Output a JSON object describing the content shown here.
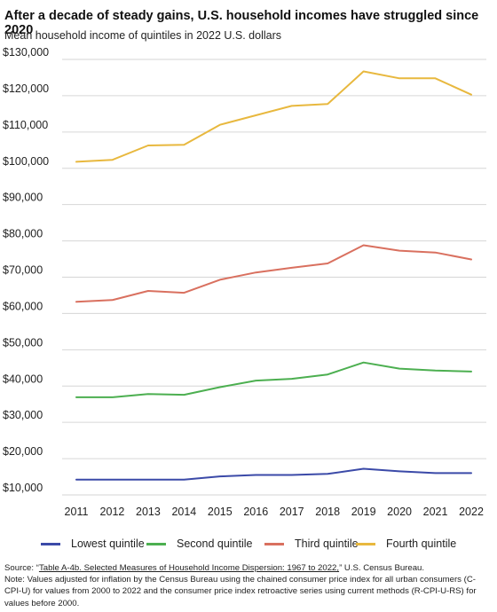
{
  "title": "After a decade of steady gains, U.S. household incomes have struggled since 2020",
  "subtitle": "Mean household income of quintiles in 2022 U.S. dollars",
  "chart_data": {
    "type": "line",
    "x": [
      "2011",
      "2012",
      "2013",
      "2014",
      "2015",
      "2016",
      "2017",
      "2018",
      "2019",
      "2020",
      "2021",
      "2022"
    ],
    "ylim": [
      10000,
      130000
    ],
    "y_ticks": [
      "$130,000",
      "$120,000",
      "$110,000",
      "$100,000",
      "$90,000",
      "$80,000",
      "$70,000",
      "$60,000",
      "$50,000",
      "$40,000",
      "$30,000",
      "$20,000",
      "$10,000"
    ],
    "y_tick_values": [
      130000,
      120000,
      110000,
      100000,
      90000,
      80000,
      70000,
      60000,
      50000,
      40000,
      30000,
      20000,
      10000
    ],
    "grid": true,
    "legend_position": "bottom",
    "series": [
      {
        "name": "Lowest quintile",
        "color": "#3b4aa8",
        "values": [
          14200,
          14200,
          14200,
          14200,
          15100,
          15500,
          15500,
          15800,
          17200,
          16500,
          16000,
          16000
        ]
      },
      {
        "name": "Second quintile",
        "color": "#4caf50",
        "values": [
          36900,
          36900,
          37800,
          37600,
          39700,
          41500,
          42000,
          43200,
          46500,
          44800,
          44300,
          44000
        ]
      },
      {
        "name": "Third quintile",
        "color": "#d9705f",
        "values": [
          63200,
          63700,
          66200,
          65700,
          69300,
          71300,
          72600,
          73800,
          78800,
          77300,
          76800,
          74900
        ]
      },
      {
        "name": "Fourth quintile",
        "color": "#e8b83e",
        "values": [
          101800,
          102300,
          106300,
          106500,
          112000,
          114600,
          117200,
          117700,
          126700,
          124800,
          124800,
          120300
        ]
      }
    ]
  },
  "footer": {
    "source_prefix": "Source: “",
    "source_link": "Table A-4b. Selected Measures of Household Income Dispersion: 1967 to 2022,",
    "source_suffix": "” U.S. Census Bureau.",
    "note": "Note: Values adjusted for inflation by the Census Bureau using the chained consumer price index for all urban consumers (C-CPI-U) for values from 2000 to 2022 and the consumer price index retroactive series using current methods (R-CPI-U-RS) for values before 2000."
  }
}
